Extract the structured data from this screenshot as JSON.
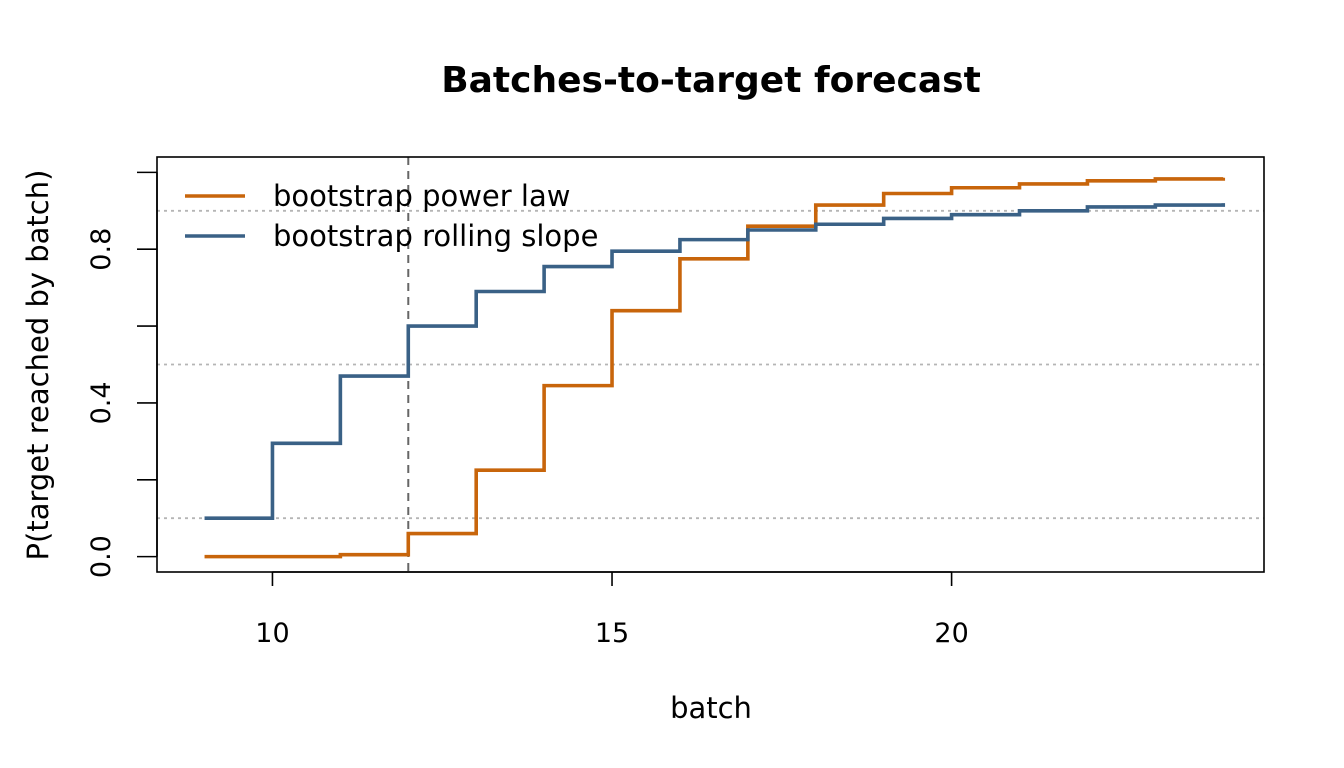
{
  "chart_data": {
    "type": "line",
    "step": true,
    "title": "Batches-to-target forecast",
    "xlabel": "batch",
    "ylabel": "P(target reached by batch)",
    "xlim": [
      8.3,
      24.6
    ],
    "ylim": [
      -0.04,
      1.04
    ],
    "x_ticks": [
      10,
      15,
      20
    ],
    "y_ticks": [
      0.0,
      0.2,
      0.4,
      0.6,
      0.8,
      1.0
    ],
    "y_tick_labels": [
      "0.0",
      "",
      "0.4",
      "",
      "0.8",
      ""
    ],
    "hlines": [
      0.1,
      0.5,
      0.9
    ],
    "vline": 12,
    "grid": false,
    "legend_position": "top-left",
    "x": [
      9,
      10,
      11,
      12,
      13,
      14,
      15,
      16,
      17,
      18,
      19,
      20,
      21,
      22,
      23,
      24
    ],
    "series": [
      {
        "name": "bootstrap power law",
        "color": "#c8650b",
        "values": [
          0.0,
          0.0,
          0.005,
          0.06,
          0.225,
          0.445,
          0.64,
          0.775,
          0.86,
          0.915,
          0.945,
          0.96,
          0.97,
          0.978,
          0.983,
          0.986
        ]
      },
      {
        "name": "bootstrap rolling slope",
        "color": "#3a6186",
        "values": [
          0.1,
          0.295,
          0.47,
          0.6,
          0.69,
          0.755,
          0.795,
          0.825,
          0.85,
          0.865,
          0.88,
          0.89,
          0.9,
          0.91,
          0.915,
          0.92
        ]
      }
    ]
  }
}
